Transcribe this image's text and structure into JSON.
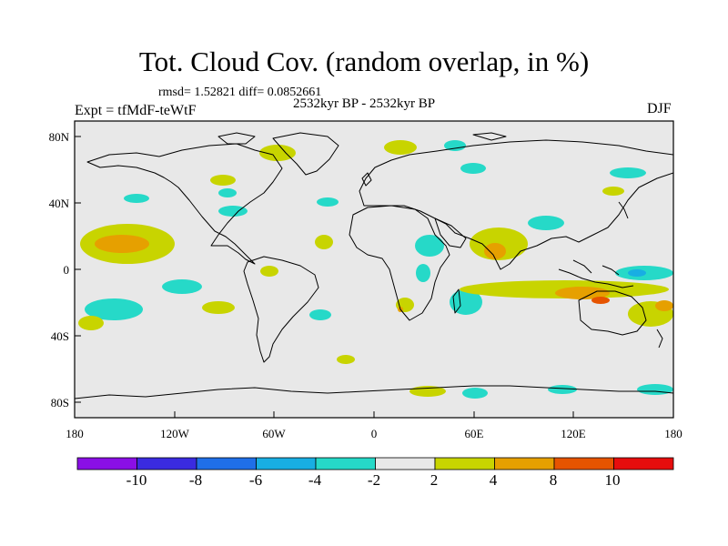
{
  "header": {
    "title": "Tot. Cloud Cov. (random overlap, in %)",
    "stats": "rmsd= 1.52821 diff= 0.0852661",
    "period": "2532kyr BP - 2532kyr BP",
    "experiment": "Expt = tfMdF-teWtF",
    "season": "DJF"
  },
  "map": {
    "type": "filled-contour map of cloud cover difference",
    "lon_ticks": [
      "180",
      "120W",
      "60W",
      "0",
      "60E",
      "120E",
      "180"
    ],
    "lat_ticks": [
      "80N",
      "40N",
      "0",
      "40S",
      "80S"
    ],
    "background_color": "#e8e8e8"
  },
  "colorbar": {
    "labels": [
      "-10",
      "-8",
      "-6",
      "-4",
      "-2",
      "2",
      "4",
      "8",
      "10"
    ],
    "colors": [
      "#8a0fe6",
      "#3a2be0",
      "#1f6fe8",
      "#18aee3",
      "#26d9c8",
      "#e8e8e8",
      "#c8d400",
      "#e6a000",
      "#e65400",
      "#e60d0d"
    ]
  }
}
